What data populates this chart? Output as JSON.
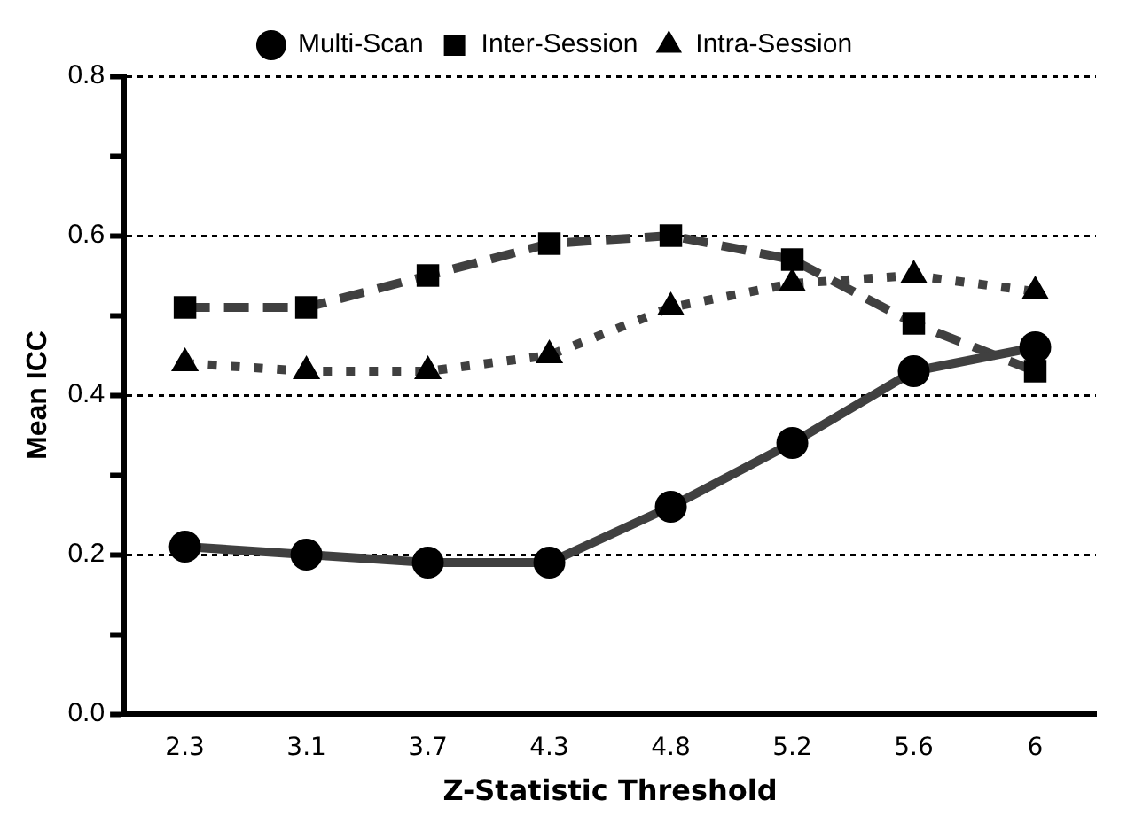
{
  "chart_data": {
    "type": "line",
    "xlabel": "Z-Statistic Threshold",
    "ylabel": "Mean ICC",
    "categories": [
      "2.3",
      "3.1",
      "3.7",
      "4.3",
      "4.8",
      "5.2",
      "5.6",
      "6"
    ],
    "series": [
      {
        "name": "Multi-Scan",
        "color": "#404040",
        "marker": "circle",
        "line_style": "solid",
        "values": [
          0.21,
          0.2,
          0.19,
          0.19,
          0.26,
          0.34,
          0.43,
          0.46
        ]
      },
      {
        "name": "Inter-Session",
        "color": "#404040",
        "marker": "square",
        "line_style": "dashed",
        "values": [
          0.51,
          0.51,
          0.55,
          0.59,
          0.6,
          0.57,
          0.49,
          0.43
        ]
      },
      {
        "name": "Intra-Session",
        "color": "#404040",
        "marker": "triangle",
        "line_style": "dotted",
        "values": [
          0.44,
          0.43,
          0.43,
          0.45,
          0.51,
          0.54,
          0.55,
          0.53
        ]
      }
    ],
    "ylim": [
      0,
      0.8
    ],
    "yticks": [
      {
        "value": 0,
        "label": "0.0"
      },
      {
        "value": 0.1,
        "label": null
      },
      {
        "value": 0.2,
        "label": "0.2"
      },
      {
        "value": 0.3,
        "label": null
      },
      {
        "value": 0.4,
        "label": "0.4"
      },
      {
        "value": 0.5,
        "label": null
      },
      {
        "value": 0.6,
        "label": "0.6"
      },
      {
        "value": 0.7,
        "label": null
      },
      {
        "value": 0.8,
        "label": "0.8"
      }
    ],
    "grid": "y",
    "legend": "top"
  }
}
